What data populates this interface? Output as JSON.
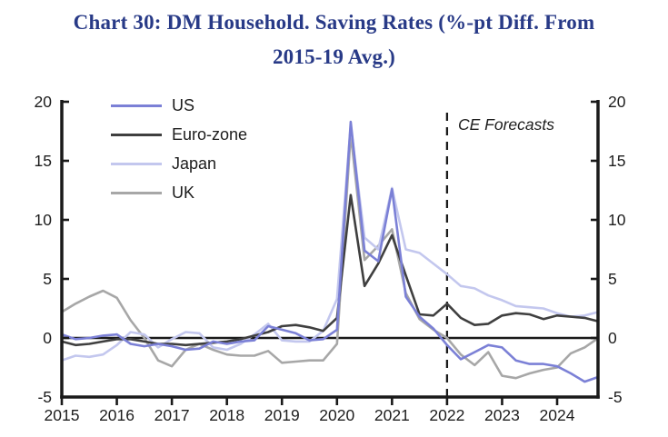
{
  "chart_data": {
    "type": "line",
    "title": "Chart 30: DM Household. Saving Rates (%-pt Diff. From 2015-19 Avg.)",
    "title_lines": [
      "Chart 30: DM Household. Saving Rates (%-pt Diff. From",
      "2015-19 Avg.)"
    ],
    "title_color": "#283a87",
    "xlabel": "",
    "ylabel": "",
    "x_frequency": "quarterly",
    "x_start": 2015.0,
    "x_end": 2024.75,
    "x_tick_labels": [
      "2015",
      "2016",
      "2017",
      "2018",
      "2019",
      "2020",
      "2021",
      "2022",
      "2023",
      "2024"
    ],
    "y_ticks": [
      20,
      15,
      10,
      5,
      0,
      -5
    ],
    "ylim": [
      -5,
      20
    ],
    "dual_y_axis": true,
    "grid": false,
    "zero_line": true,
    "legend_position": "top-left-inside",
    "forecast_annotation": {
      "label": "CE Forecasts",
      "line_at_x": 2022.0,
      "line_style": "dashed",
      "line_color": "#1a1a1a"
    },
    "series": [
      {
        "name": "US",
        "color": "#7b80d6",
        "values": [
          0.3,
          -0.1,
          0.0,
          0.2,
          0.3,
          -0.5,
          -0.7,
          -0.5,
          -0.7,
          -1.0,
          -0.9,
          -0.3,
          -0.5,
          -0.3,
          -0.2,
          1.0,
          0.7,
          0.4,
          -0.2,
          -0.1,
          0.7,
          18.3,
          7.4,
          6.5,
          12.6,
          3.5,
          1.8,
          0.8,
          -0.6,
          -1.8,
          -1.2,
          -0.6,
          -0.8,
          -1.9,
          -2.2,
          -2.2,
          -2.4,
          -3.0,
          -3.7,
          -3.3
        ]
      },
      {
        "name": "Euro-zone",
        "color": "#3f3f3f",
        "values": [
          -0.3,
          -0.6,
          -0.5,
          -0.3,
          -0.1,
          -0.1,
          -0.3,
          -0.5,
          -0.5,
          -0.6,
          -0.5,
          -0.4,
          -0.3,
          -0.1,
          0.2,
          0.5,
          1.0,
          1.1,
          0.9,
          0.6,
          1.7,
          12.1,
          4.4,
          6.3,
          8.7,
          5.3,
          2.0,
          1.9,
          2.9,
          1.7,
          1.1,
          1.2,
          1.9,
          2.1,
          2.0,
          1.6,
          1.9,
          1.8,
          1.7,
          1.4
        ]
      },
      {
        "name": "Japan",
        "color": "#c3c7ee",
        "values": [
          -1.9,
          -1.5,
          -1.6,
          -1.4,
          -0.6,
          0.5,
          0.3,
          -0.8,
          -0.1,
          0.5,
          0.4,
          -0.8,
          -1.0,
          -0.5,
          0.3,
          1.2,
          -0.2,
          -0.3,
          -0.3,
          0.6,
          3.3,
          18.0,
          8.5,
          7.5,
          12.7,
          7.5,
          7.2,
          6.3,
          5.4,
          4.4,
          4.2,
          3.6,
          3.2,
          2.7,
          2.6,
          2.5,
          2.1,
          1.8,
          1.9,
          2.2
        ]
      },
      {
        "name": "UK",
        "color": "#a7a7a7",
        "values": [
          2.2,
          2.9,
          3.5,
          4.0,
          3.4,
          1.5,
          0.0,
          -1.9,
          -2.4,
          -1.0,
          -0.5,
          -1.0,
          -1.4,
          -1.5,
          -1.5,
          -1.1,
          -2.1,
          -2.0,
          -1.9,
          -1.9,
          -0.5,
          17.3,
          6.6,
          7.8,
          9.2,
          3.8,
          1.6,
          0.7,
          0.0,
          -1.4,
          -2.3,
          -1.2,
          -3.2,
          -3.4,
          -3.0,
          -2.7,
          -2.5,
          -1.3,
          -0.8,
          0.0
        ]
      }
    ]
  }
}
